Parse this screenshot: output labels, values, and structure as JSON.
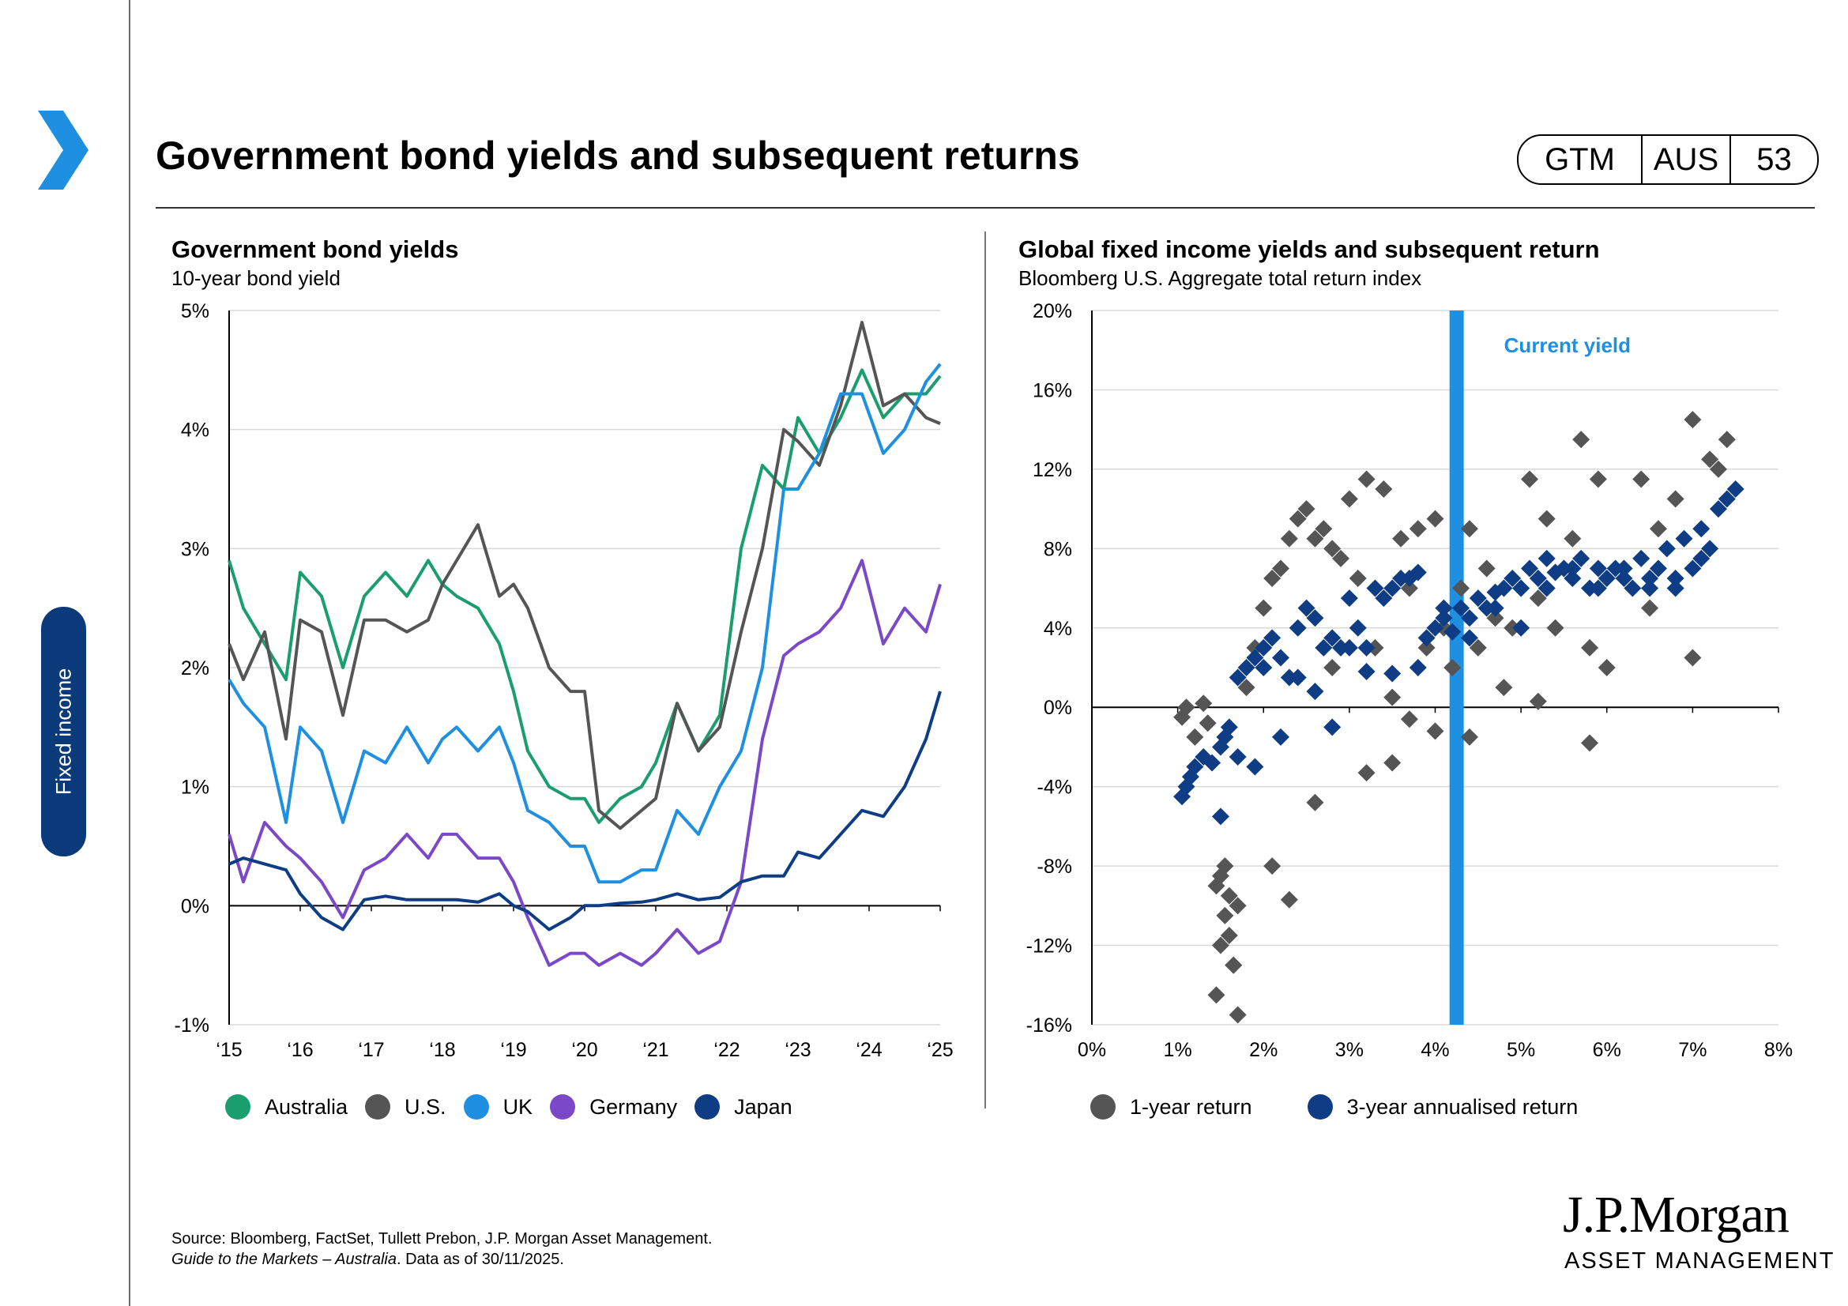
{
  "header": {
    "title": "Government bond yields and subsequent returns",
    "badge": [
      "GTM",
      "AUS",
      "53"
    ],
    "section_tab": "Fixed income"
  },
  "left_panel": {
    "title": "Government bond yields",
    "subtitle": "10-year bond yield"
  },
  "right_panel": {
    "title": "Global fixed income yields and subsequent return",
    "subtitle": "Bloomberg U.S. Aggregate total return index"
  },
  "footer": {
    "source_line1": "Source: Bloomberg, FactSet, Tullett Prebon, J.P. Morgan Asset Management.",
    "source_line2_italic": "Guide to the Markets – Australia",
    "source_line2_rest": ". Data as of 30/11/2025.",
    "logo_name": "J.P.Morgan",
    "logo_sub": "ASSET MANAGEMENT"
  },
  "chart_data": [
    {
      "type": "line",
      "title": "Government bond yields",
      "subtitle": "10-year bond yield",
      "x_tick_labels": [
        "‘15",
        "‘16",
        "‘17",
        "‘18",
        "‘19",
        "‘20",
        "‘21",
        "‘22",
        "‘23",
        "‘24",
        "‘25"
      ],
      "y_tick_labels": [
        "-1%",
        "0%",
        "1%",
        "2%",
        "3%",
        "4%",
        "5%"
      ],
      "ylim": [
        -1,
        5
      ],
      "xlim": [
        2015,
        2025
      ],
      "series": [
        {
          "name": "Australia",
          "color": "#1a9e6e",
          "x": [
            2015,
            2015.2,
            2015.5,
            2015.8,
            2016,
            2016.3,
            2016.6,
            2016.9,
            2017.2,
            2017.5,
            2017.8,
            2018,
            2018.2,
            2018.5,
            2018.8,
            2019,
            2019.2,
            2019.5,
            2019.8,
            2020,
            2020.2,
            2020.5,
            2020.8,
            2021,
            2021.3,
            2021.6,
            2021.9,
            2022.2,
            2022.5,
            2022.8,
            2023,
            2023.3,
            2023.6,
            2023.9,
            2024.2,
            2024.5,
            2024.8,
            2025
          ],
          "values": [
            2.9,
            2.5,
            2.2,
            1.9,
            2.8,
            2.6,
            2.0,
            2.6,
            2.8,
            2.6,
            2.9,
            2.7,
            2.6,
            2.5,
            2.2,
            1.8,
            1.3,
            1.0,
            0.9,
            0.9,
            0.7,
            0.9,
            1.0,
            1.2,
            1.7,
            1.3,
            1.6,
            3.0,
            3.7,
            3.5,
            4.1,
            3.8,
            4.1,
            4.5,
            4.1,
            4.3,
            4.3,
            4.45
          ]
        },
        {
          "name": "U.S.",
          "color": "#555555",
          "x": [
            2015,
            2015.2,
            2015.5,
            2015.8,
            2016,
            2016.3,
            2016.6,
            2016.9,
            2017.2,
            2017.5,
            2017.8,
            2018,
            2018.2,
            2018.5,
            2018.8,
            2019,
            2019.2,
            2019.5,
            2019.8,
            2020,
            2020.2,
            2020.5,
            2020.8,
            2021,
            2021.3,
            2021.6,
            2021.9,
            2022.2,
            2022.5,
            2022.8,
            2023,
            2023.3,
            2023.6,
            2023.9,
            2024.2,
            2024.5,
            2024.8,
            2025
          ],
          "values": [
            2.2,
            1.9,
            2.3,
            1.4,
            2.4,
            2.3,
            1.6,
            2.4,
            2.4,
            2.3,
            2.4,
            2.7,
            2.9,
            3.2,
            2.6,
            2.7,
            2.5,
            2.0,
            1.8,
            1.8,
            0.8,
            0.65,
            0.8,
            0.9,
            1.7,
            1.3,
            1.5,
            2.3,
            3.0,
            4.0,
            3.9,
            3.7,
            4.2,
            4.9,
            4.2,
            4.3,
            4.1,
            4.05
          ]
        },
        {
          "name": "UK",
          "color": "#1e8fe1",
          "x": [
            2015,
            2015.2,
            2015.5,
            2015.8,
            2016,
            2016.3,
            2016.6,
            2016.9,
            2017.2,
            2017.5,
            2017.8,
            2018,
            2018.2,
            2018.5,
            2018.8,
            2019,
            2019.2,
            2019.5,
            2019.8,
            2020,
            2020.2,
            2020.5,
            2020.8,
            2021,
            2021.3,
            2021.6,
            2021.9,
            2022.2,
            2022.5,
            2022.8,
            2023,
            2023.3,
            2023.6,
            2023.9,
            2024.2,
            2024.5,
            2024.8,
            2025
          ],
          "values": [
            1.9,
            1.7,
            1.5,
            0.7,
            1.5,
            1.3,
            0.7,
            1.3,
            1.2,
            1.5,
            1.2,
            1.4,
            1.5,
            1.3,
            1.5,
            1.2,
            0.8,
            0.7,
            0.5,
            0.5,
            0.2,
            0.2,
            0.3,
            0.3,
            0.8,
            0.6,
            1.0,
            1.3,
            2.0,
            3.5,
            3.5,
            3.8,
            4.3,
            4.3,
            3.8,
            4.0,
            4.4,
            4.55
          ]
        },
        {
          "name": "Germany",
          "color": "#7b49c8",
          "x": [
            2015,
            2015.2,
            2015.5,
            2015.8,
            2016,
            2016.3,
            2016.6,
            2016.9,
            2017.2,
            2017.5,
            2017.8,
            2018,
            2018.2,
            2018.5,
            2018.8,
            2019,
            2019.2,
            2019.5,
            2019.8,
            2020,
            2020.2,
            2020.5,
            2020.8,
            2021,
            2021.3,
            2021.6,
            2021.9,
            2022.2,
            2022.5,
            2022.8,
            2023,
            2023.3,
            2023.6,
            2023.9,
            2024.2,
            2024.5,
            2024.8,
            2025
          ],
          "values": [
            0.6,
            0.2,
            0.7,
            0.5,
            0.4,
            0.2,
            -0.1,
            0.3,
            0.4,
            0.6,
            0.4,
            0.6,
            0.6,
            0.4,
            0.4,
            0.2,
            -0.1,
            -0.5,
            -0.4,
            -0.4,
            -0.5,
            -0.4,
            -0.5,
            -0.4,
            -0.2,
            -0.4,
            -0.3,
            0.2,
            1.4,
            2.1,
            2.2,
            2.3,
            2.5,
            2.9,
            2.2,
            2.5,
            2.3,
            2.7
          ]
        },
        {
          "name": "Japan",
          "color": "#0f3d85",
          "x": [
            2015,
            2015.2,
            2015.5,
            2015.8,
            2016,
            2016.3,
            2016.6,
            2016.9,
            2017.2,
            2017.5,
            2017.8,
            2018,
            2018.2,
            2018.5,
            2018.8,
            2019,
            2019.2,
            2019.5,
            2019.8,
            2020,
            2020.2,
            2020.5,
            2020.8,
            2021,
            2021.3,
            2021.6,
            2021.9,
            2022.2,
            2022.5,
            2022.8,
            2023,
            2023.3,
            2023.6,
            2023.9,
            2024.2,
            2024.5,
            2024.8,
            2025
          ],
          "values": [
            0.35,
            0.4,
            0.35,
            0.3,
            0.1,
            -0.1,
            -0.2,
            0.05,
            0.08,
            0.05,
            0.05,
            0.05,
            0.05,
            0.03,
            0.1,
            0.0,
            -0.05,
            -0.2,
            -0.1,
            0.0,
            0.0,
            0.02,
            0.03,
            0.05,
            0.1,
            0.05,
            0.07,
            0.2,
            0.25,
            0.25,
            0.45,
            0.4,
            0.6,
            0.8,
            0.75,
            1.0,
            1.4,
            1.8
          ]
        }
      ],
      "legend": [
        "Australia",
        "U.S.",
        "UK",
        "Germany",
        "Japan"
      ]
    },
    {
      "type": "scatter",
      "title": "Global fixed income yields and subsequent return",
      "subtitle": "Bloomberg U.S. Aggregate total return index",
      "x_tick_labels": [
        "0%",
        "1%",
        "2%",
        "3%",
        "4%",
        "5%",
        "6%",
        "7%",
        "8%"
      ],
      "y_tick_labels": [
        "-16%",
        "-12%",
        "-8%",
        "-4%",
        "0%",
        "4%",
        "8%",
        "12%",
        "16%",
        "20%"
      ],
      "xlim": [
        0,
        8
      ],
      "ylim": [
        -16,
        20
      ],
      "current_yield": 4.25,
      "annotation": "Current yield",
      "series": [
        {
          "name": "1-year return",
          "color": "#555555",
          "x": [
            1.05,
            1.1,
            1.2,
            1.3,
            1.35,
            1.45,
            1.5,
            1.55,
            1.6,
            1.65,
            1.7,
            1.8,
            1.9,
            2.0,
            2.1,
            2.2,
            2.3,
            2.4,
            2.5,
            2.6,
            2.7,
            2.8,
            2.9,
            3.0,
            3.1,
            3.2,
            3.3,
            3.4,
            3.5,
            3.6,
            3.7,
            3.8,
            3.9,
            4.0,
            4.1,
            4.2,
            4.3,
            4.4,
            4.5,
            4.6,
            4.7,
            4.8,
            4.9,
            5.0,
            5.1,
            5.2,
            5.3,
            5.4,
            5.5,
            5.6,
            5.7,
            5.8,
            5.9,
            6.0,
            6.2,
            6.4,
            6.6,
            6.8,
            7.0,
            7.2,
            7.4,
            1.45,
            1.5,
            1.6,
            1.65,
            1.55,
            1.7,
            2.1,
            2.3,
            2.6,
            2.8,
            3.2,
            3.5,
            3.7,
            4.0,
            4.4,
            4.7,
            5.2,
            5.8,
            6.5,
            7.0,
            7.3
          ],
          "values": [
            -0.5,
            0.0,
            -1.5,
            0.2,
            -0.8,
            -9,
            -8.5,
            -10.5,
            -11.5,
            -13,
            -15.5,
            1.0,
            3.0,
            5.0,
            6.5,
            7.0,
            8.5,
            9.5,
            10.0,
            8.5,
            9.0,
            8.0,
            7.5,
            10.5,
            6.5,
            11.5,
            3.0,
            11.0,
            0.5,
            8.5,
            6.0,
            9.0,
            3.0,
            9.5,
            4.0,
            2.0,
            6.0,
            9.0,
            3.0,
            7.0,
            5.0,
            1.0,
            4.0,
            6.0,
            11.5,
            5.5,
            9.5,
            4.0,
            7.0,
            8.5,
            13.5,
            3.0,
            11.5,
            2.0,
            7.0,
            11.5,
            9.0,
            10.5,
            14.5,
            12.5,
            13.5,
            -14.5,
            -12.0,
            -9.5,
            -13.0,
            -8.0,
            -10.0,
            -8.0,
            -9.7,
            -4.8,
            2.0,
            -3.3,
            -2.8,
            -0.6,
            -1.2,
            -1.5,
            4.5,
            0.3,
            -1.8,
            5.0,
            2.5,
            12.0
          ]
        },
        {
          "name": "3-year annualised return",
          "color": "#0f3d85",
          "x": [
            1.05,
            1.1,
            1.15,
            1.2,
            1.3,
            1.4,
            1.5,
            1.55,
            1.6,
            1.7,
            1.8,
            1.9,
            2.0,
            2.1,
            2.2,
            2.3,
            2.4,
            2.5,
            2.6,
            2.7,
            2.8,
            2.9,
            3.0,
            3.1,
            3.2,
            3.3,
            3.4,
            3.5,
            3.6,
            3.7,
            3.8,
            3.9,
            4.0,
            4.1,
            4.2,
            4.3,
            4.4,
            4.5,
            4.6,
            4.7,
            4.8,
            4.9,
            5.0,
            5.1,
            5.2,
            5.3,
            5.4,
            5.5,
            5.6,
            5.7,
            5.8,
            5.9,
            6.0,
            6.1,
            6.2,
            6.3,
            6.4,
            6.5,
            6.6,
            6.7,
            6.8,
            6.9,
            7.0,
            7.1,
            7.2,
            7.3,
            7.4,
            7.5,
            1.5,
            1.7,
            1.9,
            2.0,
            2.2,
            2.4,
            2.6,
            2.8,
            3.0,
            3.2,
            3.5,
            3.8,
            4.1,
            4.4,
            4.7,
            5.0,
            5.3,
            5.6,
            5.9,
            6.2,
            6.5,
            6.8,
            7.1
          ],
          "values": [
            -4.5,
            -4.0,
            -3.5,
            -3.0,
            -2.5,
            -2.8,
            -2.0,
            -1.5,
            -1.0,
            1.5,
            2.0,
            2.5,
            3.0,
            3.5,
            2.5,
            1.5,
            4.0,
            5.0,
            4.5,
            3.0,
            3.5,
            3.0,
            5.5,
            4.0,
            3.0,
            6.0,
            5.5,
            6.0,
            6.5,
            6.5,
            6.8,
            3.5,
            4.0,
            4.5,
            3.8,
            5.0,
            4.5,
            5.5,
            5.0,
            5.8,
            6.0,
            6.5,
            6.0,
            7.0,
            6.5,
            7.5,
            6.8,
            7.0,
            6.5,
            7.5,
            6.0,
            7.0,
            6.5,
            7.0,
            6.5,
            6.0,
            7.5,
            6.0,
            7.0,
            8.0,
            6.5,
            8.5,
            7.0,
            9.0,
            8.0,
            10.0,
            10.5,
            11.0,
            -5.5,
            -2.5,
            -3.0,
            2.0,
            -1.5,
            1.5,
            0.8,
            -1.0,
            3.0,
            1.8,
            1.7,
            2.0,
            5.0,
            3.5,
            5.0,
            4.0,
            6.0,
            7.0,
            6.0,
            7.0,
            6.5,
            6.0,
            7.5
          ]
        }
      ],
      "legend": [
        "1-year return",
        "3-year annualised return"
      ]
    }
  ]
}
